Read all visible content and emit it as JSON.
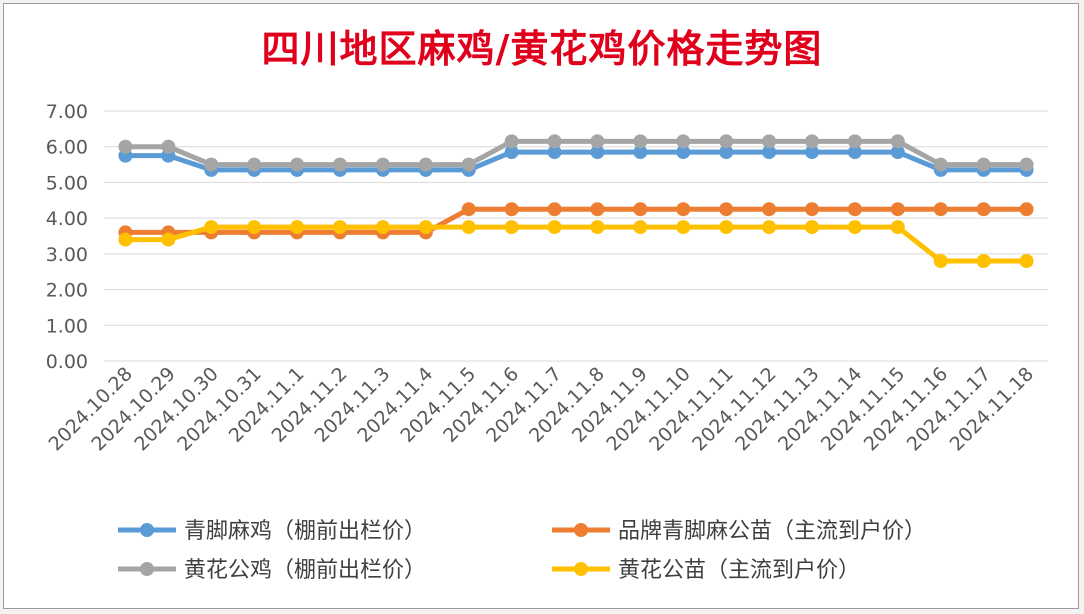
{
  "chart_data": {
    "type": "line",
    "title": "四川地区麻鸡/黄花鸡价格走势图",
    "xlabel": "",
    "ylabel": "",
    "ylim": [
      0,
      7
    ],
    "y_ticks": [
      "0.00",
      "1.00",
      "2.00",
      "3.00",
      "4.00",
      "5.00",
      "6.00",
      "7.00"
    ],
    "grid": true,
    "legend_position": "bottom",
    "categories": [
      "2024.10.28",
      "2024.10.29",
      "2024.10.30",
      "2024.10.31",
      "2024.11.1",
      "2024.11.2",
      "2024.11.3",
      "2024.11.4",
      "2024.11.5",
      "2024.11.6",
      "2024.11.7",
      "2024.11.8",
      "2024.11.9",
      "2024.11.10",
      "2024.11.11",
      "2024.11.12",
      "2024.11.13",
      "2024.11.14",
      "2024.11.15",
      "2024.11.16",
      "2024.11.17",
      "2024.11.18"
    ],
    "series": [
      {
        "name": "青脚麻鸡（棚前出栏价）",
        "color": "#5b9bd5",
        "values": [
          5.75,
          5.75,
          5.35,
          5.35,
          5.35,
          5.35,
          5.35,
          5.35,
          5.35,
          5.85,
          5.85,
          5.85,
          5.85,
          5.85,
          5.85,
          5.85,
          5.85,
          5.85,
          5.85,
          5.35,
          5.35,
          5.35
        ]
      },
      {
        "name": "品牌青脚麻公苗（主流到户价）",
        "color": "#ed7d31",
        "values": [
          3.6,
          3.6,
          3.6,
          3.6,
          3.6,
          3.6,
          3.6,
          3.6,
          4.25,
          4.25,
          4.25,
          4.25,
          4.25,
          4.25,
          4.25,
          4.25,
          4.25,
          4.25,
          4.25,
          4.25,
          4.25,
          4.25
        ]
      },
      {
        "name": "黄花公鸡（棚前出栏价）",
        "color": "#a5a5a5",
        "values": [
          6.0,
          6.0,
          5.5,
          5.5,
          5.5,
          5.5,
          5.5,
          5.5,
          5.5,
          6.15,
          6.15,
          6.15,
          6.15,
          6.15,
          6.15,
          6.15,
          6.15,
          6.15,
          6.15,
          5.5,
          5.5,
          5.5
        ]
      },
      {
        "name": "黄花公苗（主流到户价）",
        "color": "#ffc000",
        "values": [
          3.4,
          3.4,
          3.75,
          3.75,
          3.75,
          3.75,
          3.75,
          3.75,
          3.75,
          3.75,
          3.75,
          3.75,
          3.75,
          3.75,
          3.75,
          3.75,
          3.75,
          3.75,
          3.75,
          2.8,
          2.8,
          2.8
        ]
      }
    ]
  }
}
